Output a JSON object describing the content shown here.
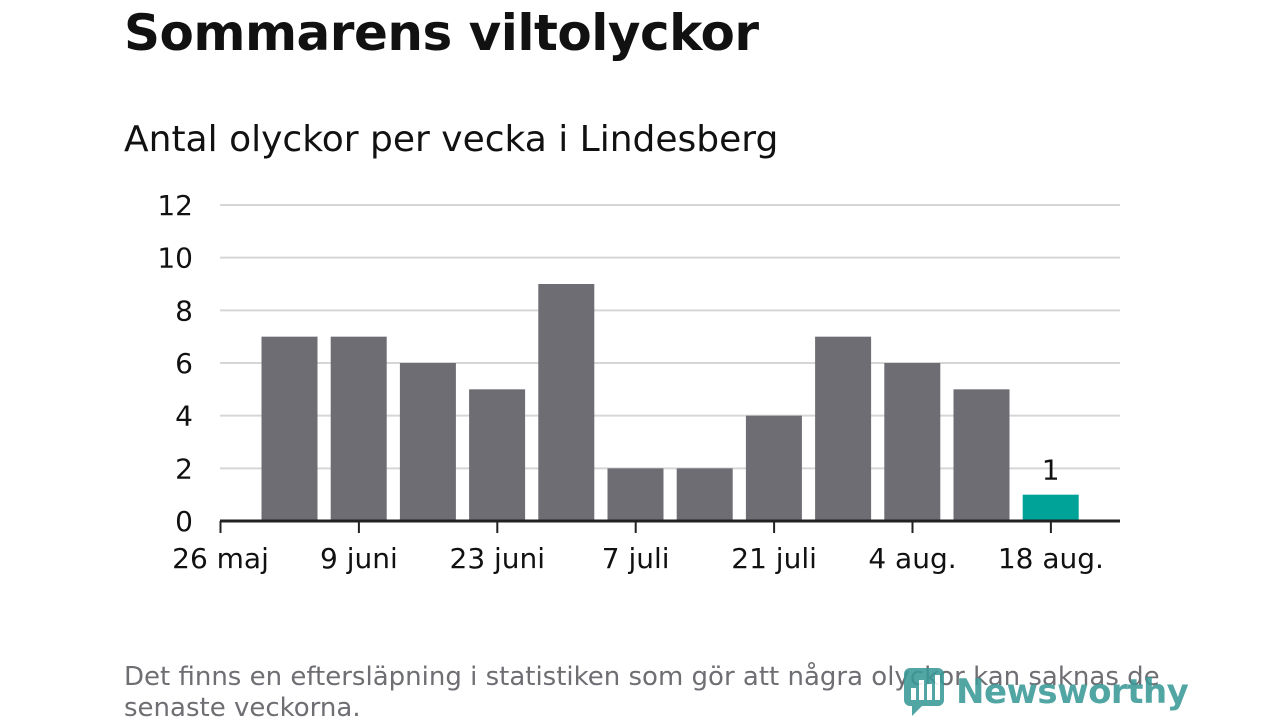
{
  "title": "Sommarens viltolyckor",
  "subtitle": "Antal olyckor per vecka i Lindesberg",
  "footnote": "Det finns en eftersläpning i statistiken som gör att några olyckor kan saknas de senaste veckorna.",
  "logo": {
    "text": "Newsworthy",
    "icon": "newsworthy-chart-icon"
  },
  "colors": {
    "bar": "#6e6d73",
    "highlight": "#00a398",
    "grid": "#d6d6d6",
    "axis": "#222222",
    "text": "#111111",
    "muted": "#6e6e73",
    "brand": "#3a9a98"
  },
  "chart_data": {
    "type": "bar",
    "values": [
      7,
      7,
      6,
      5,
      9,
      2,
      2,
      4,
      7,
      6,
      5,
      1
    ],
    "highlight_index": 11,
    "data_labels": [
      {
        "index": 11,
        "text": "1"
      }
    ],
    "ylim": [
      0,
      12
    ],
    "y_ticks": [
      0,
      2,
      4,
      6,
      8,
      10,
      12
    ],
    "x_tick_labels": [
      "26 maj",
      "9 juni",
      "23 juni",
      "7 juli",
      "21 juli",
      "4 aug.",
      "18 aug."
    ],
    "grid": true,
    "xlabel": "",
    "ylabel": ""
  }
}
